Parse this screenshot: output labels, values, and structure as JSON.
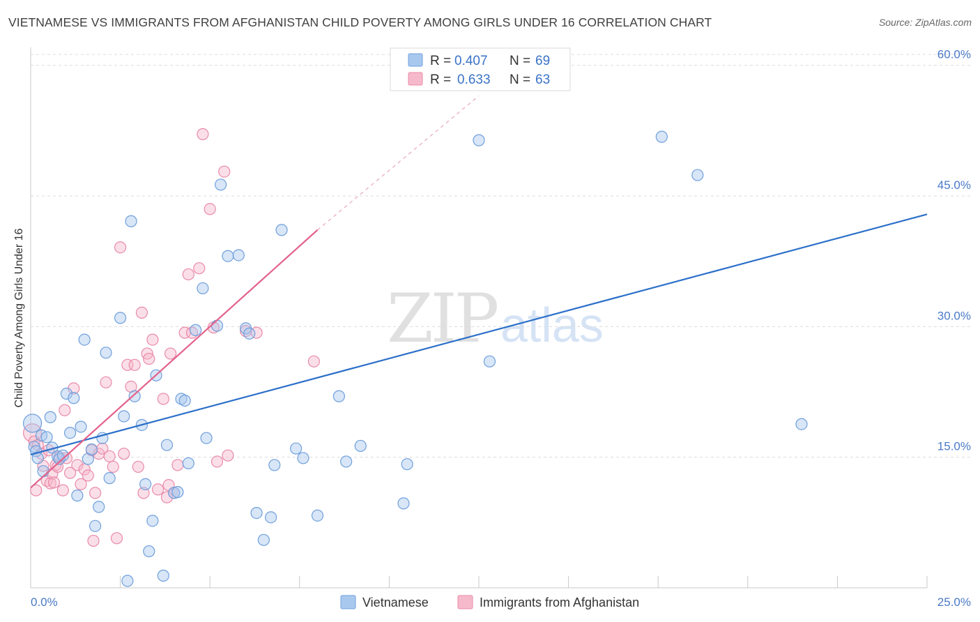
{
  "title": "VIETNAMESE VS IMMIGRANTS FROM AFGHANISTAN CHILD POVERTY AMONG GIRLS UNDER 16 CORRELATION CHART",
  "source": "Source: ZipAtlas.com",
  "watermark": {
    "zip": "ZIP",
    "atlas": "atlas"
  },
  "legend": {
    "rows": [
      {
        "r_label": "R =",
        "r_value": "0.407",
        "n_label": "N =",
        "n_value": "69",
        "series": "Vietnamese"
      },
      {
        "r_label": "R =",
        "r_value": "0.633",
        "n_label": "N =",
        "n_value": "63",
        "series": "Immigrants from Afghanistan"
      }
    ]
  },
  "bottom_legend": [
    "Vietnamese",
    "Immigrants from Afghanistan"
  ],
  "colors": {
    "vietnamese_fill": "#a9c8ee",
    "vietnamese_stroke": "#6f9fdc",
    "vietnamese_line": "#2b6fc9",
    "afghan_fill": "#f6b9cc",
    "afghan_stroke": "#e98aa8",
    "afghan_line": "#e3628b",
    "grid": "#dcdcdc",
    "tick_label": "#4a7ac8"
  },
  "chart_data": {
    "type": "scatter",
    "title": "VIETNAMESE VS IMMIGRANTS FROM AFGHANISTAN CHILD POVERTY AMONG GIRLS UNDER 16 CORRELATION CHART",
    "xlabel": "",
    "ylabel": "Child Poverty Among Girls Under 16",
    "xlim": [
      0,
      25
    ],
    "ylim": [
      0,
      61.5
    ],
    "x_tick_labels": [
      "0.0%",
      "25.0%"
    ],
    "y_ticks": [
      15,
      30,
      45,
      60
    ],
    "y_tick_labels": [
      "15.0%",
      "30.0%",
      "45.0%",
      "60.0%"
    ],
    "grid": true,
    "series": [
      {
        "name": "Vietnamese",
        "R": 0.407,
        "N": 69,
        "trend": {
          "x": [
            0,
            25
          ],
          "y": [
            15.3,
            42.9
          ],
          "style": "solid"
        },
        "points": [
          [
            0.05,
            18.9
          ],
          [
            0.1,
            16.2
          ],
          [
            0.15,
            15.7
          ],
          [
            0.2,
            14.9
          ],
          [
            0.3,
            17.5
          ],
          [
            0.35,
            13.4
          ],
          [
            0.45,
            17.3
          ],
          [
            0.55,
            19.6
          ],
          [
            0.6,
            16.1
          ],
          [
            0.75,
            15.1
          ],
          [
            0.8,
            14.8
          ],
          [
            0.9,
            15.2
          ],
          [
            1.0,
            22.3
          ],
          [
            1.1,
            17.8
          ],
          [
            1.2,
            21.8
          ],
          [
            1.3,
            10.6
          ],
          [
            1.4,
            18.5
          ],
          [
            1.5,
            28.5
          ],
          [
            1.6,
            14.8
          ],
          [
            1.7,
            15.9
          ],
          [
            1.8,
            7.1
          ],
          [
            1.9,
            9.3
          ],
          [
            2.0,
            17.2
          ],
          [
            2.1,
            27.0
          ],
          [
            2.2,
            12.6
          ],
          [
            2.5,
            31.0
          ],
          [
            2.6,
            19.7
          ],
          [
            2.7,
            0.8
          ],
          [
            2.8,
            42.1
          ],
          [
            2.9,
            22.0
          ],
          [
            3.1,
            18.7
          ],
          [
            3.2,
            11.9
          ],
          [
            3.3,
            4.2
          ],
          [
            3.4,
            7.7
          ],
          [
            3.5,
            24.4
          ],
          [
            3.7,
            1.4
          ],
          [
            3.8,
            16.4
          ],
          [
            4.0,
            10.9
          ],
          [
            4.1,
            11.0
          ],
          [
            4.2,
            21.7
          ],
          [
            4.3,
            21.5
          ],
          [
            4.4,
            14.3
          ],
          [
            4.6,
            29.6
          ],
          [
            4.8,
            34.4
          ],
          [
            4.9,
            17.2
          ],
          [
            5.2,
            30.1
          ],
          [
            5.3,
            46.3
          ],
          [
            5.5,
            38.1
          ],
          [
            5.8,
            38.2
          ],
          [
            6.0,
            29.8
          ],
          [
            6.1,
            29.2
          ],
          [
            6.3,
            8.6
          ],
          [
            6.5,
            5.5
          ],
          [
            6.7,
            8.1
          ],
          [
            6.8,
            14.1
          ],
          [
            7.0,
            41.1
          ],
          [
            7.4,
            16.0
          ],
          [
            7.6,
            14.9
          ],
          [
            8.0,
            8.3
          ],
          [
            8.6,
            22.0
          ],
          [
            8.8,
            14.5
          ],
          [
            9.2,
            16.3
          ],
          [
            10.4,
            9.7
          ],
          [
            10.5,
            14.2
          ],
          [
            12.5,
            51.4
          ],
          [
            12.8,
            26.0
          ],
          [
            17.6,
            51.8
          ],
          [
            18.6,
            47.4
          ],
          [
            21.5,
            18.8
          ]
        ]
      },
      {
        "name": "Immigrants from Afghanistan",
        "R": 0.633,
        "N": 63,
        "trend": {
          "x": [
            0,
            8.0
          ],
          "y": [
            11.5,
            41.1
          ],
          "style": "solid",
          "dashed_extension": {
            "x": [
              8.0,
              12.5
            ],
            "y": [
              41.1,
              56.5
            ]
          }
        },
        "points": [
          [
            0.05,
            17.8
          ],
          [
            0.1,
            16.8
          ],
          [
            0.15,
            11.2
          ],
          [
            0.2,
            16.4
          ],
          [
            0.3,
            15.4
          ],
          [
            0.35,
            14.0
          ],
          [
            0.45,
            12.3
          ],
          [
            0.5,
            15.8
          ],
          [
            0.55,
            12.0
          ],
          [
            0.6,
            13.1
          ],
          [
            0.65,
            12.1
          ],
          [
            0.7,
            14.1
          ],
          [
            0.75,
            13.9
          ],
          [
            0.8,
            15.0
          ],
          [
            0.9,
            11.2
          ],
          [
            0.95,
            20.4
          ],
          [
            1.0,
            14.9
          ],
          [
            1.1,
            13.2
          ],
          [
            1.2,
            22.9
          ],
          [
            1.3,
            14.1
          ],
          [
            1.4,
            11.9
          ],
          [
            1.5,
            13.6
          ],
          [
            1.6,
            12.9
          ],
          [
            1.7,
            15.8
          ],
          [
            1.75,
            5.4
          ],
          [
            1.8,
            10.9
          ],
          [
            1.9,
            15.4
          ],
          [
            2.0,
            16.0
          ],
          [
            2.1,
            23.6
          ],
          [
            2.2,
            15.1
          ],
          [
            2.3,
            13.9
          ],
          [
            2.4,
            5.7
          ],
          [
            2.5,
            39.1
          ],
          [
            2.6,
            15.4
          ],
          [
            2.7,
            25.6
          ],
          [
            2.8,
            23.1
          ],
          [
            2.9,
            25.6
          ],
          [
            3.0,
            13.9
          ],
          [
            3.1,
            31.6
          ],
          [
            3.15,
            10.9
          ],
          [
            3.25,
            26.9
          ],
          [
            3.3,
            26.3
          ],
          [
            3.4,
            28.5
          ],
          [
            3.55,
            11.3
          ],
          [
            3.7,
            21.7
          ],
          [
            3.8,
            10.4
          ],
          [
            3.85,
            11.8
          ],
          [
            3.9,
            26.9
          ],
          [
            4.0,
            10.9
          ],
          [
            4.1,
            14.1
          ],
          [
            4.3,
            29.3
          ],
          [
            4.4,
            36.0
          ],
          [
            4.5,
            29.3
          ],
          [
            4.7,
            36.7
          ],
          [
            4.8,
            52.1
          ],
          [
            5.0,
            43.5
          ],
          [
            5.1,
            29.9
          ],
          [
            5.2,
            14.5
          ],
          [
            5.4,
            47.8
          ],
          [
            5.5,
            15.2
          ],
          [
            6.0,
            29.5
          ],
          [
            6.3,
            29.3
          ],
          [
            7.9,
            26.0
          ]
        ]
      }
    ]
  }
}
